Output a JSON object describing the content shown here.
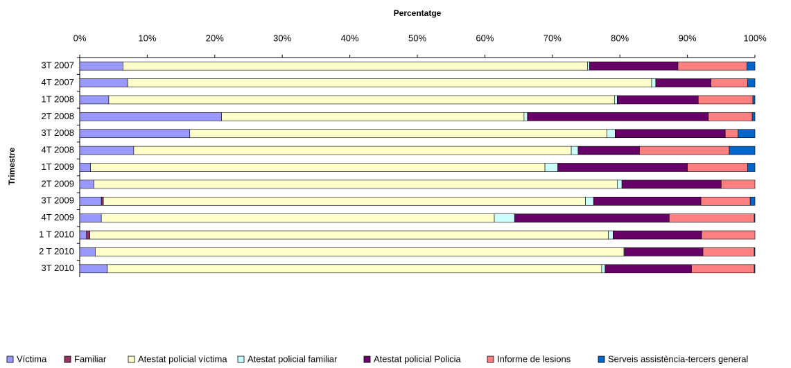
{
  "chart_data": {
    "type": "stacked_barh",
    "title": "Percentatge",
    "y_label": "Trimestre",
    "categories": [
      "3T 2007",
      "4T 2007",
      "1T 2008",
      "2T 2008",
      "3T 2008",
      "4T 2008",
      "1T 2009",
      "2T 2009",
      "3T 2009",
      "4T 2009",
      "1 T 2010",
      "2 T 2010",
      "3T 2010"
    ],
    "xlim": [
      0,
      100
    ],
    "xticks": [
      {
        "value": 0,
        "label": "0%"
      },
      {
        "value": 10,
        "label": "10%"
      },
      {
        "value": 20,
        "label": "20%"
      },
      {
        "value": 30,
        "label": "30%"
      },
      {
        "value": 40,
        "label": "40%"
      },
      {
        "value": 50,
        "label": "50%"
      },
      {
        "value": 60,
        "label": "60%"
      },
      {
        "value": 70,
        "label": "70%"
      },
      {
        "value": 80,
        "label": "80%"
      },
      {
        "value": 90,
        "label": "90%"
      },
      {
        "value": 100,
        "label": "100%"
      }
    ],
    "legend": "bottom",
    "series": [
      {
        "name": "Víctima",
        "color": "#9999ff",
        "values": [
          6.4,
          7.1,
          4.3,
          21.0,
          16.3,
          8.0,
          1.6,
          2.1,
          3.2,
          3.2,
          1.0,
          2.3,
          4.1
        ]
      },
      {
        "name": "Familiar",
        "color": "#993366",
        "values": [
          0,
          0,
          0,
          0,
          0,
          0,
          0,
          0,
          0.3,
          0,
          0.5,
          0,
          0
        ]
      },
      {
        "name": "Atestat policial víctima",
        "color": "#ffffcc",
        "values": [
          68.8,
          77.6,
          74.9,
          44.8,
          61.8,
          64.8,
          67.3,
          77.5,
          71.4,
          58.2,
          76.8,
          78.3,
          73.2
        ]
      },
      {
        "name": "Atestat policial familiar",
        "color": "#ccffff",
        "values": [
          0.3,
          0.6,
          0.4,
          0.5,
          1.2,
          1.0,
          1.9,
          0.7,
          1.2,
          3.0,
          0.7,
          0.1,
          0.5
        ]
      },
      {
        "name": "Atestat policial Policia",
        "color": "#660066",
        "values": [
          13.1,
          8.2,
          12.0,
          26.8,
          16.3,
          9.1,
          19.2,
          14.7,
          15.9,
          22.9,
          13.1,
          11.6,
          12.8
        ]
      },
      {
        "name": "Informe de lesions",
        "color": "#ff8080",
        "values": [
          10.2,
          5.4,
          8.1,
          6.5,
          1.9,
          13.3,
          8.9,
          5.0,
          7.3,
          12.6,
          7.9,
          7.6,
          9.3
        ]
      },
      {
        "name": "Serveis assistència-tercers general",
        "color": "#0066cc",
        "values": [
          1.2,
          1.1,
          0.3,
          0.4,
          2.5,
          3.8,
          1.1,
          0,
          0.7,
          0.1,
          0,
          0.1,
          0.1
        ]
      }
    ]
  }
}
